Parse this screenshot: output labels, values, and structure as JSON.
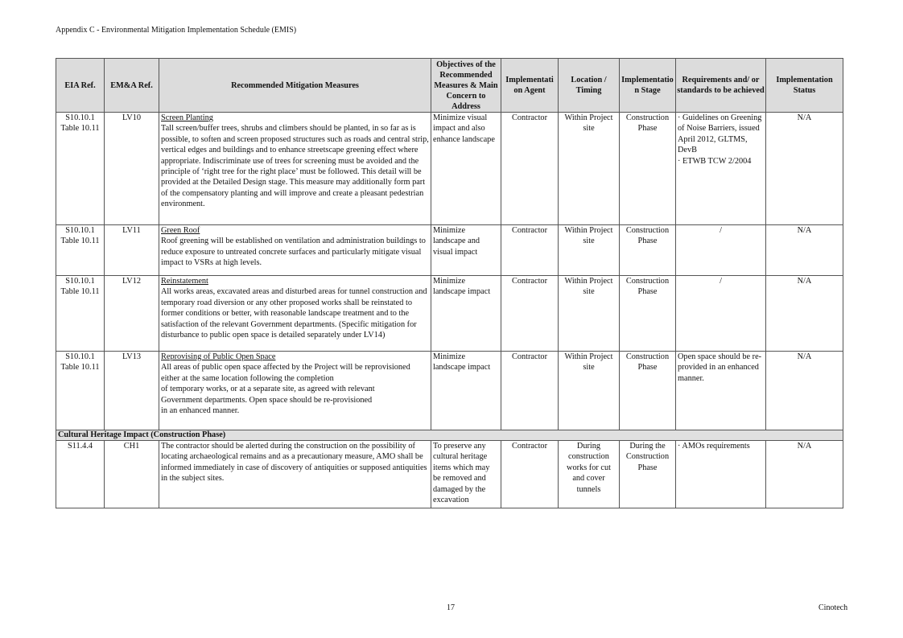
{
  "header": "Appendix C - Environmental Mitigation Implementation Schedule (EMIS)",
  "columns": [
    "EIA Ref.",
    "EM&A Ref.",
    "Recommended Mitigation Measures",
    "Objectives of the Recommended Measures & Main Concern to Address",
    "Implementati on Agent",
    "Location / Timing",
    "Implementatio n Stage",
    "Requirements and/ or standards to be achieved",
    "Implementation Status"
  ],
  "rows": [
    {
      "eia": "S10.10.1\nTable 10.11",
      "ema": "LV10",
      "title": "Screen Planting",
      "text": "Tall screen/buffer trees, shrubs and climbers should be planted, in so far as is possible, to soften and screen proposed structures such as roads and central strip, vertical edges and buildings and to enhance streetscape greening effect where appropriate. Indiscriminate use of trees for screening must be avoided and the principle of ‘right tree for the right place’ must be followed. This detail will be provided at the Detailed Design stage. This measure may additionally form part of the compensatory planting and will improve and create a pleasant pedestrian environment.",
      "objective": "Minimize visual impact and also enhance landscape",
      "agent": "Contractor",
      "location": "Within Project site",
      "stage": "Construction Phase",
      "requirements": "· Guidelines on Greening of Noise Barriers, issued April 2012, GLTMS, DevB\n· ETWB TCW 2/2004",
      "status": "N/A"
    },
    {
      "eia": "S10.10.1\nTable 10.11",
      "ema": "LV11",
      "title": "Green Roof",
      "text": "Roof greening will be established on ventilation and administration buildings to reduce exposure to untreated concrete surfaces and particularly mitigate visual impact to VSRs at high levels.",
      "objective": "Minimize landscape and visual impact",
      "agent": "Contractor",
      "location": "Within Project site",
      "stage": "Construction Phase",
      "requirements": "/",
      "status": "N/A"
    },
    {
      "eia": "S10.10.1\nTable 10.11",
      "ema": "LV12",
      "title": "Reinstatement",
      "text": "All works areas, excavated areas and disturbed areas for tunnel construction and temporary road diversion or any other proposed works shall be reinstated to former conditions or better, with reasonable landscape treatment and to the satisfaction of the relevant Government departments. (Specific mitigation for disturbance to public open space is detailed separately under LV14)",
      "objective": "Minimize landscape impact",
      "agent": "Contractor",
      "location": "Within Project site",
      "stage": "Construction Phase",
      "requirements": "/",
      "status": "N/A"
    },
    {
      "eia": "S10.10.1\nTable 10.11",
      "ema": "LV13",
      "title": "Reprovising of Public Open Space",
      "text": "All areas of public open space affected by the Project will be reprovisioned either at the same location following the completion\nof temporary works, or at a separate site, as agreed with relevant\nGovernment departments. Open space should be re-provisioned\nin an enhanced manner.",
      "objective": "Minimize landscape impact",
      "agent": "Contractor",
      "location": "Within Project site",
      "stage": "Construction Phase",
      "requirements": "Open space should be re-provided in an enhanced manner.",
      "status": "N/A"
    }
  ],
  "section": "Cultural Heritage Impact (Construction Phase)",
  "rows2": [
    {
      "eia": "S11.4.4",
      "ema": "CH1",
      "text": "The contractor should be alerted during the construction on the possibility of locating archaeological remains and as a precautionary measure, AMO shall be informed immediately in case of discovery of antiquities or supposed antiquities in the subject sites.",
      "objective": "To preserve any cultural heritage items which may be removed and damaged by the excavation",
      "agent": "Contractor",
      "location": "During construction works for cut and cover tunnels",
      "stage": "During the Construction Phase",
      "requirements": "· AMOs requirements",
      "status": "N/A"
    }
  ],
  "footer": {
    "page": "17",
    "company": "Cinotech"
  }
}
